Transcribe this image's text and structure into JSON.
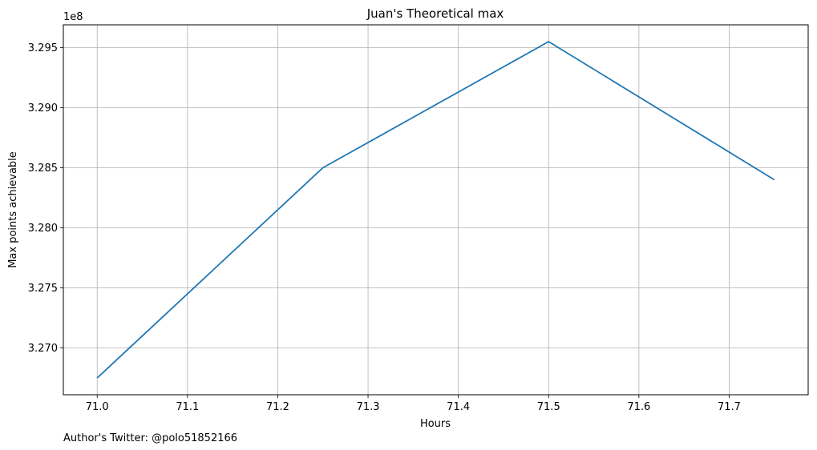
{
  "chart_data": {
    "type": "line",
    "title": "Juan's Theoretical max",
    "xlabel": "Hours",
    "ylabel": "Max points achievable",
    "y_offset_label": "1e8",
    "x": [
      71.0,
      71.25,
      71.5,
      71.75
    ],
    "series": [
      {
        "values": [
          326750000,
          328500000,
          329550000,
          328400000
        ],
        "color": "#1f77b4"
      }
    ],
    "xlim": [
      70.9625,
      71.7875
    ],
    "ylim": [
      326610000,
      329690000
    ],
    "x_ticks": [
      71.0,
      71.1,
      71.2,
      71.3,
      71.4,
      71.5,
      71.6,
      71.7
    ],
    "x_tick_labels": [
      "71.0",
      "71.1",
      "71.2",
      "71.3",
      "71.4",
      "71.5",
      "71.6",
      "71.7"
    ],
    "y_ticks": [
      327000000,
      327500000,
      328000000,
      328500000,
      329000000,
      329500000
    ],
    "y_tick_labels": [
      "3.270",
      "3.275",
      "3.280",
      "3.285",
      "3.290",
      "3.295"
    ],
    "grid": true,
    "grid_color": "#b0b0b0"
  },
  "footer": {
    "author_note": "Author's Twitter: @polo51852166"
  }
}
